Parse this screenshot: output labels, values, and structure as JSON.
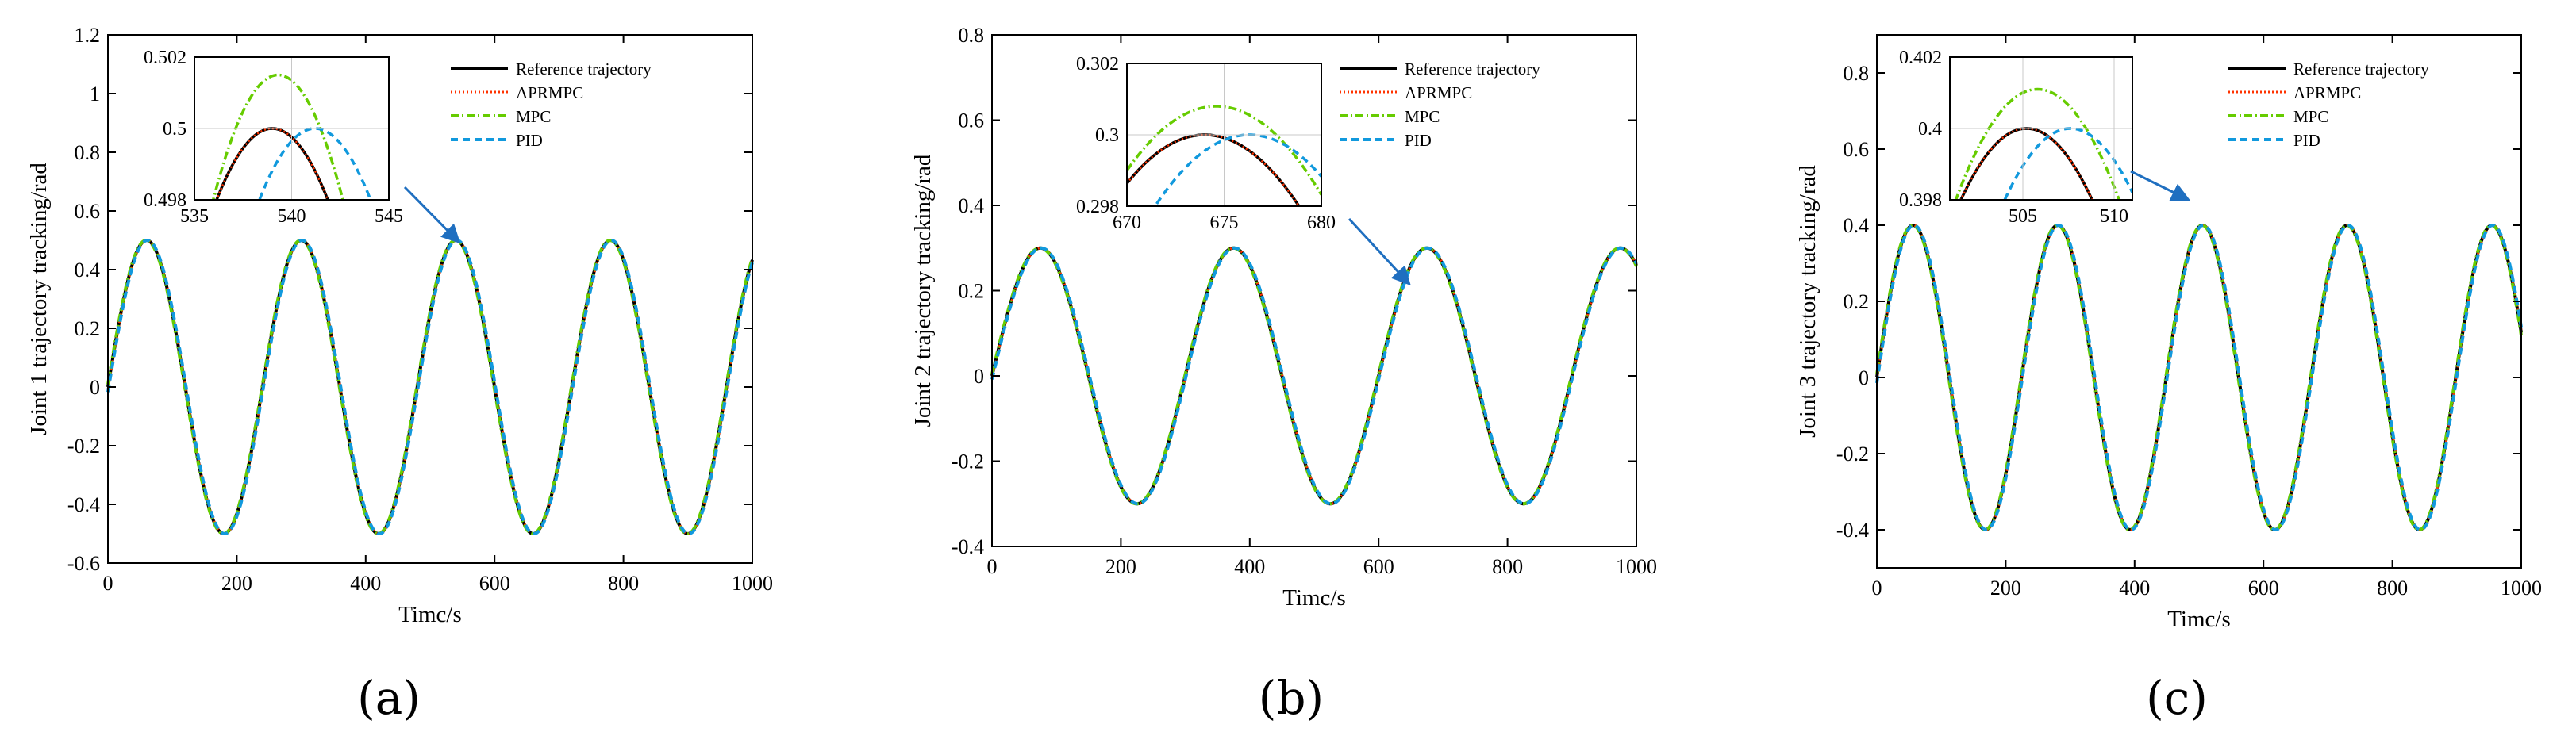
{
  "colors": {
    "reference": "#000000",
    "aprmpc": "#FF3300",
    "mpc": "#66CC00",
    "pid": "#1199DD",
    "arrow": "#1F6FC0"
  },
  "chart_data": [
    {
      "type": "line",
      "panel_label": "(a)",
      "xlabel": "Timc/s",
      "ylabel": "Joint 1 trajectory tracking/rad",
      "xlim": [
        0,
        1000
      ],
      "ylim": [
        -0.6,
        1.2
      ],
      "xticks": [
        0,
        200,
        400,
        600,
        800,
        1000
      ],
      "xtick_labels": [
        "0",
        "200",
        "400",
        "600",
        "800",
        "1000"
      ],
      "yticks": [
        -0.6,
        -0.4,
        -0.2,
        0,
        0.2,
        0.4,
        0.6,
        0.8,
        1,
        1.2
      ],
      "ytick_labels": [
        "-0.6",
        "-0.4",
        "-0.2",
        "0",
        "0.2",
        "0.4",
        "0.6",
        "0.8",
        "1",
        "1.2"
      ],
      "signal": {
        "amplitude": 0.5,
        "period": 240,
        "phase_offset": 0,
        "samples_from": 0,
        "samples_to": 1000
      },
      "legend": [
        "Reference trajectory",
        "APRMPC",
        "MPC",
        "PID"
      ],
      "legend_position": "top-right",
      "arrow_target": {
        "x": 542,
        "y": 0.5
      },
      "inset": {
        "xlim": [
          535,
          545
        ],
        "ylim": [
          0.498,
          0.502
        ],
        "xticks": [
          535,
          540,
          545
        ],
        "xtick_labels": [
          "535",
          "540",
          "545"
        ],
        "yticks": [
          0.498,
          0.5,
          0.502
        ],
        "ytick_labels": [
          "0.498",
          "0.5",
          "0.502"
        ],
        "series": [
          {
            "name": "Reference trajectory",
            "peak_x": 539.0,
            "peak_y": 0.5,
            "curvature": 0.000245
          },
          {
            "name": "APRMPC",
            "peak_x": 539.0,
            "peak_y": 0.5,
            "curvature": 0.000245
          },
          {
            "name": "MPC",
            "peak_x": 539.3,
            "peak_y": 0.5015,
            "curvature": 0.000315
          },
          {
            "name": "PID",
            "peak_x": 541.2,
            "peak_y": 0.5,
            "curvature": 0.000245
          }
        ]
      }
    },
    {
      "type": "line",
      "panel_label": "(b)",
      "xlabel": "Timc/s",
      "ylabel": "Joint 2 trajectory tracking/rad",
      "xlim": [
        0,
        1000
      ],
      "ylim": [
        -0.4,
        0.8
      ],
      "xticks": [
        0,
        200,
        400,
        600,
        800,
        1000
      ],
      "xtick_labels": [
        "0",
        "200",
        "400",
        "600",
        "800",
        "1000"
      ],
      "yticks": [
        -0.4,
        -0.2,
        0,
        0.2,
        0.4,
        0.6,
        0.8
      ],
      "ytick_labels": [
        "-0.4",
        "-0.2",
        "0",
        "0.2",
        "0.4",
        "0.6",
        "0.8"
      ],
      "signal": {
        "amplitude": 0.3,
        "period": 300,
        "phase_offset": 0,
        "samples_from": 0,
        "samples_to": 1000
      },
      "legend": [
        "Reference trajectory",
        "APRMPC",
        "MPC",
        "PID"
      ],
      "legend_position": "top-right",
      "arrow_target": {
        "x": 645,
        "y": 0.22
      },
      "inset": {
        "xlim": [
          670,
          680
        ],
        "ylim": [
          0.298,
          0.302
        ],
        "xticks": [
          670,
          675,
          680
        ],
        "xtick_labels": [
          "670",
          "675",
          "680"
        ],
        "yticks": [
          0.298,
          0.3,
          0.302
        ],
        "ytick_labels": [
          "0.298",
          "0.3",
          "0.302"
        ],
        "series": [
          {
            "name": "Reference trajectory",
            "peak_x": 674.0,
            "peak_y": 0.3,
            "curvature": 8.5e-05
          },
          {
            "name": "APRMPC",
            "peak_x": 674.0,
            "peak_y": 0.3,
            "curvature": 8.5e-05
          },
          {
            "name": "MPC",
            "peak_x": 674.6,
            "peak_y": 0.3008,
            "curvature": 8.5e-05
          },
          {
            "name": "PID",
            "peak_x": 676.3,
            "peak_y": 0.3,
            "curvature": 8.5e-05
          }
        ]
      }
    },
    {
      "type": "line",
      "panel_label": "(c)",
      "xlabel": "Timc/s",
      "ylabel": "Joint 3 trajectory tracking/rad",
      "xlim": [
        0,
        1000
      ],
      "ylim": [
        -0.5,
        0.9
      ],
      "xticks": [
        0,
        200,
        400,
        600,
        800,
        1000
      ],
      "xtick_labels": [
        "0",
        "200",
        "400",
        "600",
        "800",
        "1000"
      ],
      "yticks": [
        -0.4,
        -0.2,
        0,
        0.2,
        0.4,
        0.6,
        0.8
      ],
      "ytick_labels": [
        "-0.4",
        "-0.2",
        "0",
        "0.2",
        "0.4",
        "0.6",
        "0.8"
      ],
      "signal": {
        "amplitude": 0.4,
        "period": 224.6,
        "phase_offset": 0,
        "samples_from": 0,
        "samples_to": 1000
      },
      "legend": [
        "Reference trajectory",
        "APRMPC",
        "MPC",
        "PID"
      ],
      "legend_position": "top-right",
      "arrow_target": {
        "x": 480,
        "y": 0.47
      },
      "inset": {
        "xlim": [
          501,
          511
        ],
        "ylim": [
          0.398,
          0.402
        ],
        "xticks": [
          505,
          510
        ],
        "xtick_labels": [
          "505",
          "510"
        ],
        "yticks": [
          0.398,
          0.4,
          0.402
        ],
        "ytick_labels": [
          "0.398",
          "0.4",
          "0.402"
        ],
        "series": [
          {
            "name": "Reference trajectory",
            "peak_x": 505.2,
            "peak_y": 0.4,
            "curvature": 0.000155
          },
          {
            "name": "APRMPC",
            "peak_x": 505.2,
            "peak_y": 0.4,
            "curvature": 0.000155
          },
          {
            "name": "MPC",
            "peak_x": 505.8,
            "peak_y": 0.4011,
            "curvature": 0.000155
          },
          {
            "name": "PID",
            "peak_x": 507.6,
            "peak_y": 0.4,
            "curvature": 0.000155
          }
        ]
      }
    }
  ]
}
